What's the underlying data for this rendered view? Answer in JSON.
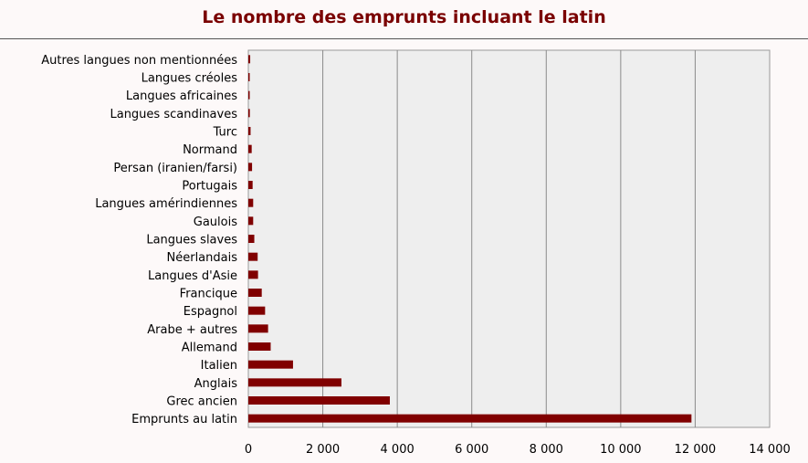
{
  "chart_data": {
    "type": "bar",
    "orientation": "horizontal",
    "title": "Le nombre des emprunts incluant le latin",
    "xlabel": "",
    "ylabel": "",
    "xlim": [
      0,
      14000
    ],
    "grid": true,
    "categories": [
      "Emprunts au latin",
      "Grec ancien",
      "Anglais",
      "Italien",
      "Allemand",
      "Arabe + autres",
      "Espagnol",
      "Francique",
      "Langues d'Asie",
      "Néerlandais",
      "Langues slaves",
      "Gaulois",
      "Langues amérindiennes",
      "Portugais",
      "Persan (iranien/farsi)",
      "Normand",
      "Turc",
      "Langues scandinaves",
      "Langues africaines",
      "Langues créoles",
      "Autres langues non mentionnées"
    ],
    "values": [
      11900,
      3800,
      2500,
      1200,
      600,
      530,
      450,
      360,
      260,
      250,
      160,
      130,
      130,
      115,
      100,
      90,
      60,
      40,
      30,
      20,
      50
    ],
    "x_ticks": [
      "0",
      "2 000",
      "4 000",
      "6 000",
      "8 000",
      "10 000",
      "12 000",
      "14 000"
    ],
    "bar_color": "#800000"
  }
}
